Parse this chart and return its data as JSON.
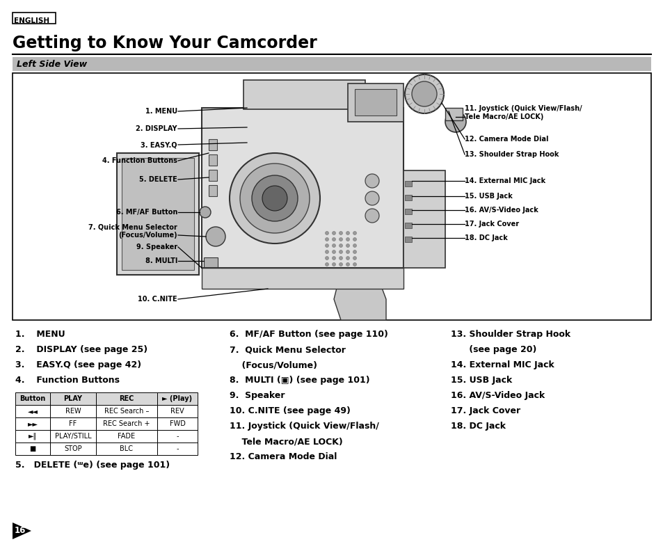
{
  "bg_color": "#ffffff",
  "title_label": "ENGLISH",
  "title_main": "Getting to Know Your Camcorder",
  "section_title": "Left Side View",
  "table_headers": [
    "Button",
    "PLAY",
    "REC",
    "► (Play)"
  ],
  "table_rows": [
    [
      "◄◄",
      "REW",
      "REC Search –",
      "REV"
    ],
    [
      "►►",
      "FF",
      "REC Search +",
      "FWD"
    ],
    [
      "►‖",
      "PLAY/STILL",
      "FADE",
      "-"
    ],
    [
      "■",
      "STOP",
      "BLC",
      "-"
    ]
  ],
  "page_number": "16"
}
